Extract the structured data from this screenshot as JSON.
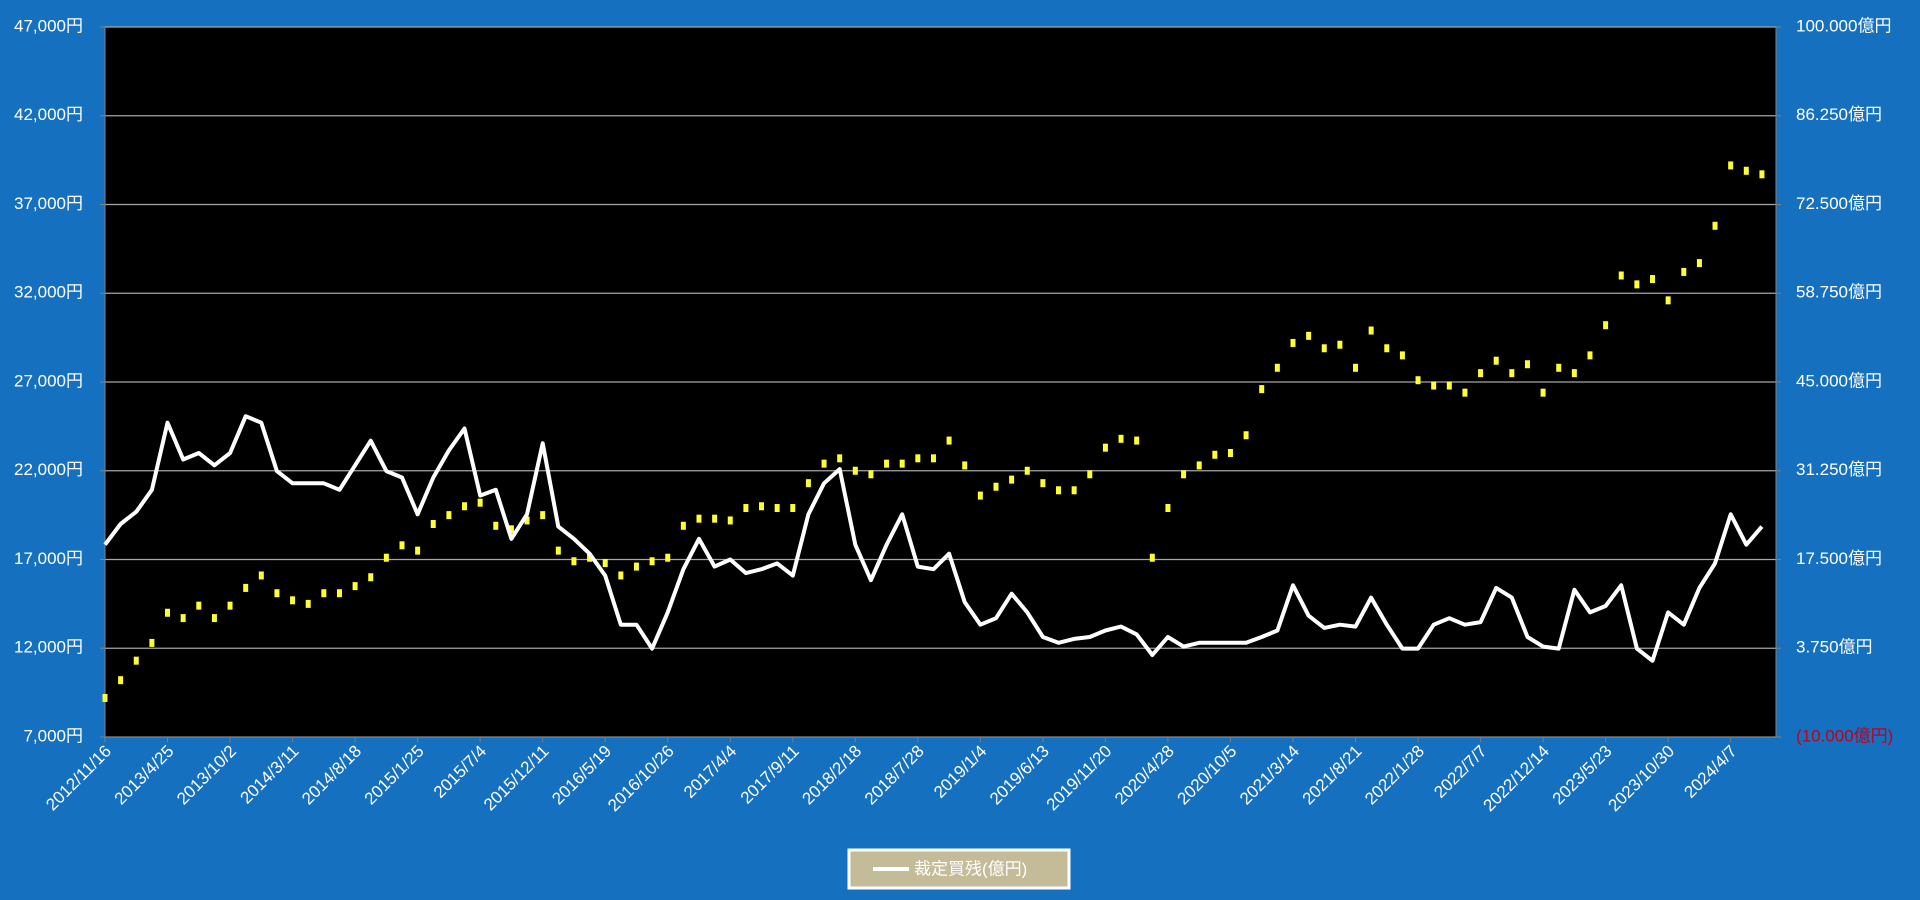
{
  "chart_data": {
    "type": "line",
    "x": [
      "2012/11/16",
      null,
      null,
      null,
      "2013/4/25",
      null,
      null,
      null,
      "2013/10/2",
      null,
      null,
      null,
      "2014/3/11",
      null,
      null,
      null,
      "2014/8/18",
      null,
      null,
      null,
      "2015/1/25",
      null,
      null,
      null,
      "2015/7/4",
      null,
      null,
      null,
      "2015/12/11",
      null,
      null,
      null,
      "2016/5/19",
      null,
      null,
      null,
      "2016/10/26",
      null,
      null,
      null,
      "2017/4/4",
      null,
      null,
      null,
      "2017/9/11",
      null,
      null,
      null,
      "2018/2/18",
      null,
      null,
      null,
      "2018/7/28",
      null,
      null,
      null,
      "2019/1/4",
      null,
      null,
      null,
      "2019/6/13",
      null,
      null,
      null,
      "2019/11/20",
      null,
      null,
      null,
      "2020/4/28",
      null,
      null,
      null,
      "2020/10/5",
      null,
      null,
      null,
      "2021/3/14",
      null,
      null,
      null,
      "2021/8/21",
      null,
      null,
      null,
      "2022/1/28",
      null,
      null,
      null,
      "2022/7/7",
      null,
      null,
      null,
      "2022/12/14",
      null,
      null,
      null,
      "2023/5/23",
      null,
      null,
      null,
      "2023/10/30",
      null,
      null,
      null,
      "2024/4/7",
      null,
      null
    ],
    "series": [
      {
        "name": "裁定買残(億円)",
        "type": "line",
        "axis": "y2",
        "color": "#ffffff",
        "values": [
          19800,
          23000,
          24900,
          28300,
          38700,
          33000,
          34000,
          32100,
          34000,
          39700,
          38700,
          31200,
          29300,
          29300,
          29300,
          28300,
          32100,
          35900,
          31200,
          30200,
          24500,
          30200,
          34400,
          37800,
          27400,
          28300,
          20700,
          24500,
          35500,
          22600,
          20700,
          18400,
          15000,
          7400,
          7400,
          3700,
          9300,
          16000,
          20700,
          16400,
          17500,
          15400,
          16000,
          16900,
          15000,
          24500,
          29300,
          31500,
          19800,
          14300,
          19800,
          24500,
          16400,
          16000,
          18400,
          10900,
          7400,
          8400,
          12200,
          9300,
          5500,
          4600,
          5200,
          5500,
          6500,
          7100,
          5900,
          2700,
          5500,
          4000,
          4600,
          4600,
          4600,
          4600,
          5500,
          6500,
          13500,
          8800,
          6900,
          7400,
          7100,
          11600,
          7400,
          3700,
          3700,
          7400,
          8400,
          7400,
          7800,
          13100,
          11600,
          5500,
          4000,
          3700,
          12800,
          9300,
          10300,
          13500,
          3700,
          1800,
          9300,
          7400,
          13100,
          16900,
          24500,
          19800,
          22600
        ]
      },
      {
        "type": "scatter",
        "color": "#ffff33",
        "values": [
          9200,
          10200,
          11300,
          12300,
          14000,
          13700,
          14400,
          13700,
          14400,
          15400,
          16100,
          15100,
          14700,
          14500,
          15100,
          15100,
          15500,
          16000,
          17100,
          17800,
          17500,
          19000,
          19500,
          20000,
          20200,
          18900,
          18700,
          19200,
          19500,
          17500,
          16900,
          17100,
          16800,
          16100,
          16600,
          16900,
          17100,
          18900,
          19300,
          19300,
          19200,
          19900,
          20000,
          19900,
          19900,
          21300,
          22400,
          22700,
          22000,
          21800,
          22400,
          22400,
          22700,
          22700,
          23700,
          22300,
          20600,
          21100,
          21500,
          22000,
          21300,
          20900,
          20900,
          21800,
          23300,
          23800,
          23700,
          17100,
          19900,
          21800,
          22300,
          22900,
          23000,
          24000,
          26600,
          27800,
          29200,
          29600,
          28900,
          29100,
          27800,
          29900,
          28900,
          28500,
          27100,
          26800,
          26800,
          26400,
          27500,
          28200,
          27500,
          28000,
          26400,
          27800,
          27500,
          28500,
          30200,
          33000,
          32500,
          32800,
          31600,
          33200,
          33700,
          35800,
          39200,
          38900,
          38700
        ]
      }
    ],
    "ylim": [
      7000,
      47000
    ],
    "yticks": [
      {
        "value": 7000,
        "label": "7,000円"
      },
      {
        "value": 12000,
        "label": "12,000円"
      },
      {
        "value": 17000,
        "label": "17,000円"
      },
      {
        "value": 22000,
        "label": "22,000円"
      },
      {
        "value": 27000,
        "label": "27,000円"
      },
      {
        "value": 32000,
        "label": "32,000円"
      },
      {
        "value": 37000,
        "label": "37,000円"
      },
      {
        "value": 42000,
        "label": "42,000円"
      },
      {
        "value": 47000,
        "label": "47,000円"
      }
    ],
    "y2lim": [
      -10000,
      100000
    ],
    "y2ticks": [
      {
        "value": -10000,
        "label": "(10.000億円)"
      },
      {
        "value": 3750,
        "label": "3.750億円"
      },
      {
        "value": 17500,
        "label": "17.500億円"
      },
      {
        "value": 31250,
        "label": "31.250億円"
      },
      {
        "value": 45000,
        "label": "45.000億円"
      },
      {
        "value": 58750,
        "label": "58.750億円"
      },
      {
        "value": 72500,
        "label": "72.500億円"
      },
      {
        "value": 86250,
        "label": "86.250億円"
      },
      {
        "value": 100000,
        "label": "100.000億円"
      }
    ],
    "grid": true,
    "legend": "bottom",
    "background": "#1570c0",
    "plot_background": "#000000",
    "grid_color": "#a6a6a6",
    "negative_label_color": "#c0001c",
    "legend_fill": "#c4bb98"
  }
}
